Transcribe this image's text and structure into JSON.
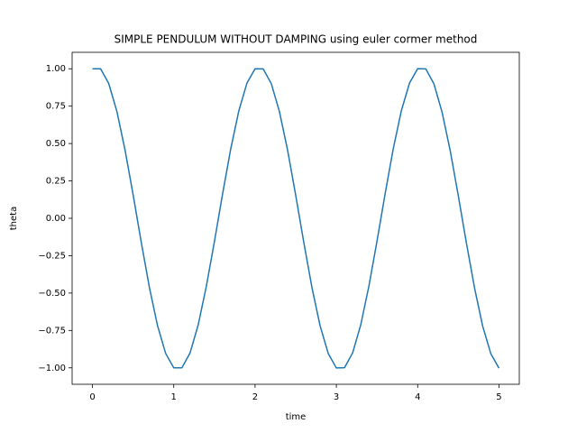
{
  "chart_data": {
    "type": "line",
    "title": "SIMPLE PENDULUM WITHOUT DAMPING using euler cormer method",
    "xlabel": "time",
    "ylabel": "theta",
    "color": "#1f77b4",
    "x": [
      0,
      0.1,
      0.2,
      0.3,
      0.4,
      0.5,
      0.6,
      0.7,
      0.8,
      0.9,
      1.0,
      1.1,
      1.2,
      1.3,
      1.4,
      1.5,
      1.6,
      1.7,
      1.8,
      1.9,
      2.0,
      2.1,
      2.2,
      2.3,
      2.4,
      2.5,
      2.6,
      2.7,
      2.8,
      2.9,
      3.0,
      3.1,
      3.2,
      3.3,
      3.4,
      3.5,
      3.6,
      3.7,
      3.8,
      3.9,
      4.0,
      4.1,
      4.2,
      4.3,
      4.4,
      4.5,
      4.6,
      4.7,
      4.8,
      4.9,
      5.0
    ],
    "values": [
      1.0,
      1.0,
      0.902,
      0.716,
      0.459,
      0.158,
      -0.159,
      -0.461,
      -0.717,
      -0.903,
      -1.0,
      -1.0,
      -0.901,
      -0.714,
      -0.457,
      -0.156,
      0.161,
      0.462,
      0.718,
      0.904,
      1.0,
      0.999,
      0.9,
      0.713,
      0.456,
      0.154,
      -0.163,
      -0.464,
      -0.719,
      -0.904,
      -1.001,
      -0.999,
      -0.9,
      -0.712,
      -0.454,
      -0.152,
      0.165,
      0.466,
      0.721,
      0.905,
      1.001,
      0.999,
      0.899,
      0.71,
      0.453,
      0.15,
      -0.167,
      -0.467,
      -0.722,
      -0.906,
      -1.002
    ],
    "xlim": [
      -0.25,
      5.25
    ],
    "ylim": [
      -1.11,
      1.11
    ],
    "xticks": [
      0,
      1,
      2,
      3,
      4,
      5
    ],
    "yticks": [
      {
        "value": -1,
        "label": "−1.00"
      },
      {
        "value": -0.75,
        "label": "−0.75"
      },
      {
        "value": -0.5,
        "label": "−0.50"
      },
      {
        "value": -0.25,
        "label": "−0.25"
      },
      {
        "value": 0,
        "label": "0.00"
      },
      {
        "value": 0.25,
        "label": "0.25"
      },
      {
        "value": 0.5,
        "label": "0.50"
      },
      {
        "value": 0.75,
        "label": "0.75"
      },
      {
        "value": 1,
        "label": "1.00"
      }
    ],
    "grid": false
  }
}
